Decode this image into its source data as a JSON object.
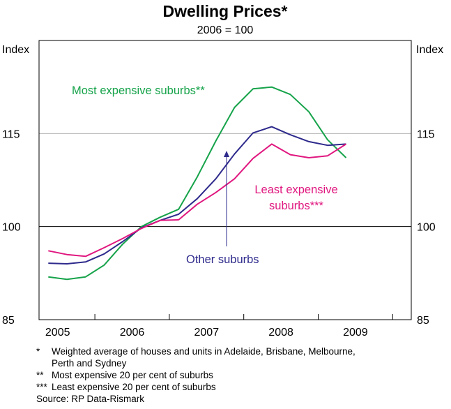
{
  "chart_data": {
    "type": "line",
    "title": "Dwelling Prices*",
    "subtitle": "2006 = 100",
    "ylabel_left": "Index",
    "ylabel_right": "Index",
    "ylim": [
      85,
      130
    ],
    "yticks": [
      85,
      100,
      115
    ],
    "xlim": [
      2004.75,
      2009.75
    ],
    "x_tick_labels": [
      "2005",
      "2006",
      "2007",
      "2008",
      "2009"
    ],
    "reference_line": 100,
    "gridlines": [
      115
    ],
    "series": [
      {
        "name": "Most expensive suburbs**",
        "label_lines": [
          "Most expensive suburbs**"
        ],
        "color": "#16a34a",
        "x": [
          2004.875,
          2005.125,
          2005.375,
          2005.625,
          2005.875,
          2006.125,
          2006.375,
          2006.625,
          2006.875,
          2007.125,
          2007.375,
          2007.625,
          2007.875,
          2008.125,
          2008.375,
          2008.625,
          2008.875
        ],
        "values": [
          91.9,
          91.5,
          91.9,
          93.8,
          97.2,
          100.0,
          101.5,
          102.8,
          108.0,
          113.8,
          119.2,
          122.2,
          122.5,
          121.3,
          118.5,
          114.0,
          111.1
        ]
      },
      {
        "name": "Other suburbs",
        "label_lines": [
          "Other suburbs"
        ],
        "color": "#2e2a8c",
        "x": [
          2004.875,
          2005.125,
          2005.375,
          2005.625,
          2005.875,
          2006.125,
          2006.375,
          2006.625,
          2006.875,
          2007.125,
          2007.375,
          2007.625,
          2007.875,
          2008.125,
          2008.375,
          2008.625,
          2008.875
        ],
        "values": [
          94.1,
          94.0,
          94.3,
          95.6,
          97.6,
          99.8,
          101.0,
          102.0,
          104.5,
          107.7,
          111.7,
          115.1,
          116.1,
          114.8,
          113.7,
          113.1,
          113.3
        ]
      },
      {
        "name": "Least expensive suburbs***",
        "label_lines": [
          "Least expensive",
          "suburbs***"
        ],
        "color": "#e0177f",
        "x": [
          2004.875,
          2005.125,
          2005.375,
          2005.625,
          2005.875,
          2006.125,
          2006.375,
          2006.625,
          2006.875,
          2007.125,
          2007.375,
          2007.625,
          2007.875,
          2008.125,
          2008.375,
          2008.625,
          2008.875
        ],
        "values": [
          96.1,
          95.5,
          95.2,
          96.6,
          98.1,
          99.7,
          101.0,
          101.1,
          103.6,
          105.5,
          107.7,
          111.0,
          113.3,
          111.6,
          111.1,
          111.4,
          113.3
        ]
      }
    ]
  },
  "footnotes": [
    {
      "mark": "*",
      "lines": [
        "Weighted average of houses and units in Adelaide, Brisbane, Melbourne,",
        "Perth and Sydney"
      ]
    },
    {
      "mark": "**",
      "lines": [
        "Most expensive 20 per cent of suburbs"
      ]
    },
    {
      "mark": "***",
      "lines": [
        "Least expensive 20 per cent of suburbs"
      ]
    }
  ],
  "source": "Source: RP Data-Rismark",
  "colors": {
    "axis": "#000000",
    "gridline": "#b5b5b5"
  }
}
